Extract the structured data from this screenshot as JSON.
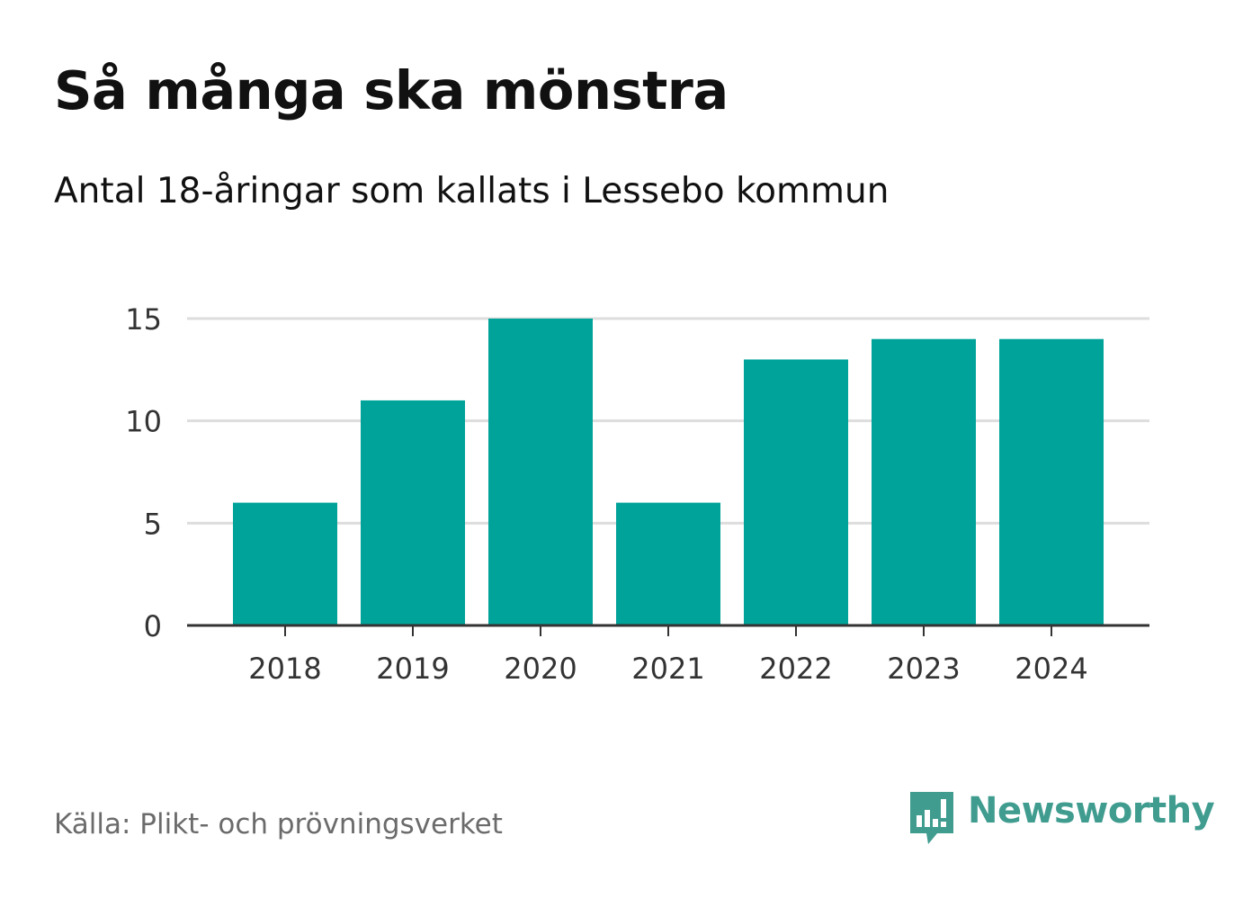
{
  "title": "Så många ska mönstra",
  "subtitle": "Antal 18-åringar som kallats i Lessebo kommun",
  "source": "Källa: Plikt- och prövningsverket",
  "brand": {
    "name": "Newsworthy",
    "logo_icon": "newsworthy-chart-bubble-icon",
    "color": "#3f9c8f"
  },
  "colors": {
    "bar": "#00a39a",
    "grid": "#dddddd",
    "axis": "#333333",
    "tick_text": "#333333"
  },
  "chart_data": {
    "type": "bar",
    "title": "Så många ska mönstra",
    "subtitle": "Antal 18-åringar som kallats i Lessebo kommun",
    "xlabel": "",
    "ylabel": "",
    "categories": [
      "2018",
      "2019",
      "2020",
      "2021",
      "2022",
      "2023",
      "2024"
    ],
    "values": [
      6,
      11,
      15,
      6,
      13,
      14,
      14
    ],
    "ylim": [
      0,
      15
    ],
    "yticks": [
      0,
      5,
      10,
      15
    ],
    "grid": true,
    "legend": "none"
  }
}
